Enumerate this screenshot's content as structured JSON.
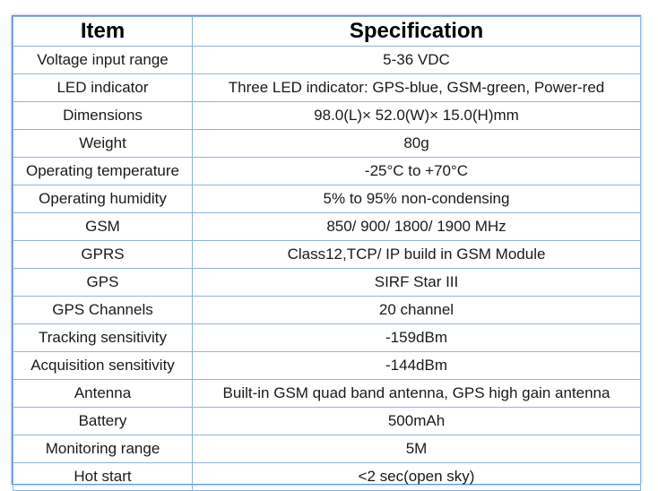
{
  "table": {
    "headers": {
      "item": "Item",
      "specification": "Specification"
    },
    "rows": [
      {
        "item": "Voltage input range",
        "spec": "5-36 VDC"
      },
      {
        "item": "LED indicator",
        "spec": "Three LED indicator: GPS-blue, GSM-green, Power-red"
      },
      {
        "item": "Dimensions",
        "spec": "98.0(L)× 52.0(W)× 15.0(H)mm"
      },
      {
        "item": "Weight",
        "spec": "80g"
      },
      {
        "item": "Operating temperature",
        "spec": "-25°C to +70°C"
      },
      {
        "item": "Operating humidity",
        "spec": "5% to 95% non-condensing"
      },
      {
        "item": "GSM",
        "spec": "850/ 900/ 1800/ 1900 MHz"
      },
      {
        "item": "GPRS",
        "spec": "Class12,TCP/ IP build in GSM Module"
      },
      {
        "item": "GPS",
        "spec": "SIRF Star III"
      },
      {
        "item": "GPS Channels",
        "spec": "20 channel"
      },
      {
        "item": "Tracking sensitivity",
        "spec": "-159dBm"
      },
      {
        "item": "Acquisition sensitivity",
        "spec": "-144dBm"
      },
      {
        "item": "Antenna",
        "spec": "Built-in GSM quad band antenna, GPS high gain antenna"
      },
      {
        "item": "Battery",
        "spec": "500mAh"
      },
      {
        "item": "Monitoring range",
        "spec": "5M"
      },
      {
        "item": "Hot start",
        "spec": "<2 sec(open sky)"
      }
    ]
  },
  "colors": {
    "border": "#8fb3e3",
    "frame": "#5b8fd6",
    "text": "#1a1a1a"
  }
}
